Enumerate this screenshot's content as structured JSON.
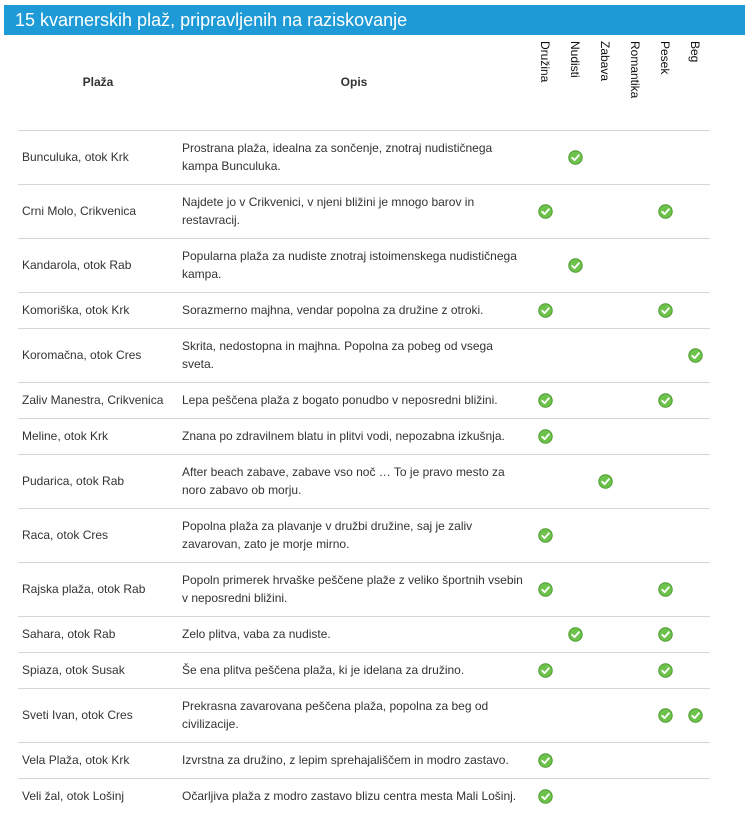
{
  "header": {
    "title": "15 kvarnerskih plaž, pripravljenih na raziskovanje"
  },
  "table": {
    "columns": [
      "Plaža",
      "Opis",
      "Družina",
      "Nudisti",
      "Zabava",
      "Romantika",
      "Pesek",
      "Beg"
    ],
    "rows": [
      {
        "name": "Bunculuka, otok Krk",
        "description": "Prostrana plaža, idealna za sončenje, znotraj nudističnega kampa Bunculuka.",
        "marks": [
          false,
          true,
          false,
          false,
          false,
          false
        ]
      },
      {
        "name": "Crni Molo, Crikvenica",
        "description": "Najdete jo v Crikvenici, v njeni bližini je mnogo barov in restavracij.",
        "marks": [
          true,
          false,
          false,
          false,
          true,
          false
        ]
      },
      {
        "name": "Kandarola, otok Rab",
        "description": "Popularna plaža za nudiste znotraj istoimenskega nudističnega kampa.",
        "marks": [
          false,
          true,
          false,
          false,
          false,
          false
        ]
      },
      {
        "name": "Komoriška, otok Krk",
        "description": "Sorazmerno majhna, vendar popolna za družine z otroki.",
        "marks": [
          true,
          false,
          false,
          false,
          true,
          false
        ]
      },
      {
        "name": "Koromačna, otok Cres",
        "description": "Skrita, nedostopna in majhna. Popolna za pobeg od vsega sveta.",
        "marks": [
          false,
          false,
          false,
          false,
          false,
          true
        ]
      },
      {
        "name": "Zaliv Manestra, Crikvenica",
        "description": "Lepa peščena plaža z bogato ponudbo v neposredni bližini.",
        "marks": [
          true,
          false,
          false,
          false,
          true,
          false
        ]
      },
      {
        "name": "Meline, otok Krk",
        "description": "Znana po zdravilnem blatu in plitvi vodi, nepozabna izkušnja.",
        "marks": [
          true,
          false,
          false,
          false,
          false,
          false
        ]
      },
      {
        "name": "Pudarica, otok Rab",
        "description": "After beach zabave, zabave vso noč … To je pravo mesto za noro zabavo ob morju.",
        "marks": [
          false,
          false,
          true,
          false,
          false,
          false
        ]
      },
      {
        "name": "Raca, otok Cres",
        "description": "Popolna plaža za plavanje v družbi družine, saj je zaliv zavarovan, zato je morje mirno.",
        "marks": [
          true,
          false,
          false,
          false,
          false,
          false
        ]
      },
      {
        "name": "Rajska plaža, otok Rab",
        "description": "Popoln primerek hrvaške peščene plaže z veliko športnih vsebin v neposredni bližini.",
        "marks": [
          true,
          false,
          false,
          false,
          true,
          false
        ]
      },
      {
        "name": "Sahara, otok Rab",
        "description": "Zelo plitva, vaba za nudiste.",
        "marks": [
          false,
          true,
          false,
          false,
          true,
          false
        ]
      },
      {
        "name": "Spiaza, otok Susak",
        "description": "Še ena plitva peščena plaža, ki je idelana za družino.",
        "marks": [
          true,
          false,
          false,
          false,
          true,
          false
        ]
      },
      {
        "name": "Sveti Ivan, otok Cres",
        "description": "Prekrasna zavarovana peščena plaža, popolna za beg od civilizacije.",
        "marks": [
          false,
          false,
          false,
          false,
          true,
          true
        ]
      },
      {
        "name": "Vela Plaža, otok Krk",
        "description": "Izvrstna za družino, z lepim sprehajališčem in modro zastavo.",
        "marks": [
          true,
          false,
          false,
          false,
          false,
          false
        ]
      },
      {
        "name": "Veli žal, otok Lošinj",
        "description": "Očarljiva plaža z modro zastavo blizu centra mesta Mali Lošinj.",
        "marks": [
          true,
          false,
          false,
          false,
          false,
          false
        ]
      }
    ]
  }
}
